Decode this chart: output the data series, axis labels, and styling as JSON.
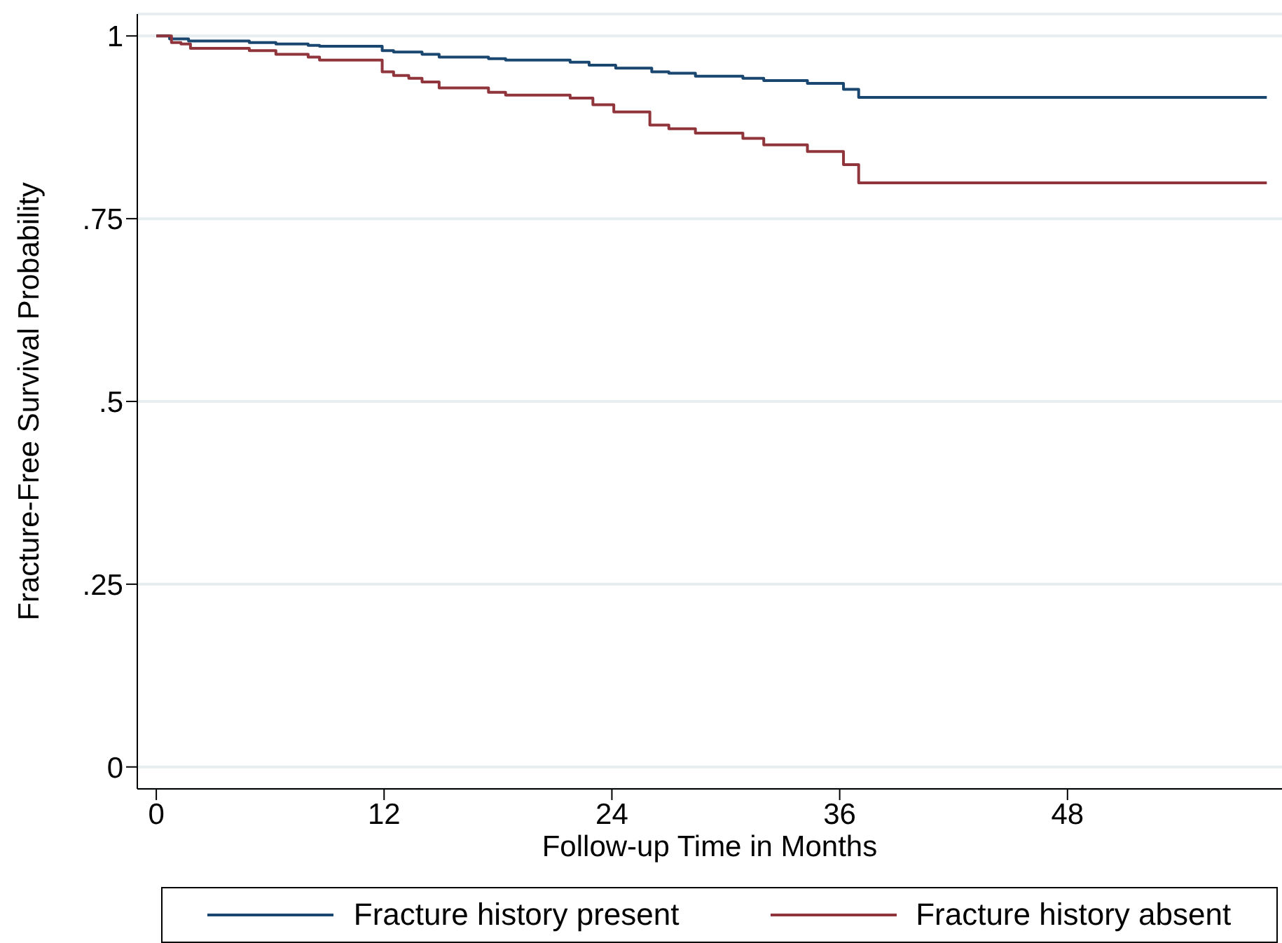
{
  "chart_data": {
    "type": "step",
    "xlabel": "Follow-up Time in Months",
    "ylabel": "Fracture-Free Survival Probability",
    "xlim": [
      -1,
      59.3
    ],
    "xticks": [
      0,
      12,
      24,
      36,
      48
    ],
    "ylim": [
      -0.03,
      1.03
    ],
    "yticks": [
      {
        "value": 0,
        "label": "0"
      },
      {
        "value": 0.25,
        "label": ".25"
      },
      {
        "value": 0.5,
        "label": ".5"
      },
      {
        "value": 0.75,
        "label": ".75"
      },
      {
        "value": 1,
        "label": "1"
      }
    ],
    "grid": "y",
    "legend": "bottom",
    "line_style": "solid",
    "marker": "none",
    "series": [
      {
        "name": "Fracture history present",
        "color": "#1a476f",
        "x": [
          0,
          0.7,
          1.7,
          4.9,
          6.3,
          8.0,
          8.6,
          11.9,
          12.5,
          14.0,
          14.9,
          17.5,
          18.4,
          21.8,
          22.8,
          24.2,
          26.1,
          27.0,
          28.4,
          30.9,
          32.0,
          34.3,
          36.2,
          37.0,
          58.5
        ],
        "values": [
          1.0,
          0.996,
          0.993,
          0.991,
          0.989,
          0.987,
          0.986,
          0.98,
          0.978,
          0.975,
          0.971,
          0.969,
          0.967,
          0.964,
          0.96,
          0.956,
          0.951,
          0.949,
          0.945,
          0.942,
          0.939,
          0.935,
          0.927,
          0.916,
          0.916
        ]
      },
      {
        "name": "Fracture history absent",
        "color": "#90353b",
        "x": [
          0,
          0.8,
          1.3,
          1.8,
          4.9,
          6.3,
          8.0,
          8.6,
          11.9,
          12.5,
          13.3,
          14.0,
          14.9,
          17.5,
          18.4,
          21.8,
          23.0,
          24.1,
          26.0,
          27.0,
          28.4,
          30.9,
          32.0,
          34.3,
          36.2,
          37.0,
          58.5
        ],
        "values": [
          1.0,
          0.991,
          0.989,
          0.983,
          0.98,
          0.975,
          0.971,
          0.967,
          0.951,
          0.946,
          0.942,
          0.937,
          0.929,
          0.923,
          0.919,
          0.915,
          0.906,
          0.896,
          0.878,
          0.873,
          0.867,
          0.86,
          0.851,
          0.842,
          0.824,
          0.799,
          0.799
        ]
      }
    ]
  }
}
